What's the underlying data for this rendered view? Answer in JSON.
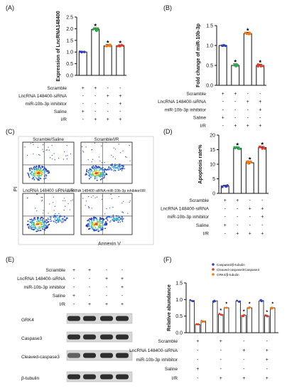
{
  "figure": {
    "panels": [
      {
        "letter": "(A)",
        "chart_data": {
          "type": "bar",
          "ylabel": "Expression of LncRNA148400",
          "ylim": [
            0,
            2.5
          ],
          "yticks": [
            "0.0",
            "0.5",
            "1.0",
            "1.5",
            "2.0",
            "2.5"
          ],
          "values": [
            1.0,
            1.97,
            1.27,
            1.27
          ],
          "errors": [
            0.02,
            0.07,
            0.05,
            0.04
          ],
          "bar_colors": [
            "#2f3fbf",
            "#2aa84a",
            "#f07a1a",
            "#e03a2a"
          ],
          "stars": [
            false,
            true,
            true,
            true
          ],
          "condition_labels": [
            "Scramble",
            "LncRNA 148400-siRNA",
            "miR-10b-3p inhibitor",
            "Saline",
            "I/R"
          ],
          "condition_signs": [
            [
              "+",
              "+",
              "-",
              "-"
            ],
            [
              "-",
              "-",
              "+",
              "+"
            ],
            [
              "-",
              "-",
              "-",
              "+"
            ],
            [
              "+",
              "-",
              "-",
              "-"
            ],
            [
              "-",
              "+",
              "+",
              "+"
            ]
          ]
        }
      },
      {
        "letter": "(B)",
        "chart_data": {
          "type": "bar",
          "ylabel": "Fold change of miR-10b-3p",
          "ylim": [
            0,
            1.5
          ],
          "yticks": [
            "0.0",
            "0.5",
            "1.0",
            "1.5"
          ],
          "values": [
            1.0,
            0.5,
            1.3,
            0.5
          ],
          "errors": [
            0.01,
            0.04,
            0.03,
            0.03
          ],
          "bar_colors": [
            "#2f3fbf",
            "#2aa84a",
            "#f07a1a",
            "#e03a2a"
          ],
          "stars": [
            false,
            true,
            true,
            true
          ],
          "condition_labels": [
            "Scramble",
            "LncRNA 148400-siRNA",
            "miR-10b-3p inhibitor",
            "Saline",
            "I/R"
          ],
          "condition_signs": [
            [
              "+",
              "+",
              "-",
              "-"
            ],
            [
              "-",
              "-",
              "+",
              "+"
            ],
            [
              "-",
              "-",
              "-",
              "+"
            ],
            [
              "+",
              "-",
              "-",
              "-"
            ],
            [
              "-",
              "+",
              "+",
              "+"
            ]
          ]
        }
      },
      {
        "letter": "(C)",
        "flow": {
          "titles": [
            "Scramble/Saline",
            "Scramble/I/R",
            "LncRNA 148400 siRNA/I/R",
            "LncRNA 148400 siRNA miR-10b-3p inhibitor/I/R"
          ],
          "xlabel": "Annexin V",
          "ylabel": "PI"
        }
      },
      {
        "letter": "(D)",
        "chart_data": {
          "type": "bar",
          "ylabel": "Apoptosis rate%",
          "ylim": [
            0,
            20
          ],
          "yticks": [
            "0",
            "5",
            "10",
            "15",
            "20"
          ],
          "values": [
            2.5,
            15.5,
            10.5,
            15.7
          ],
          "errors": [
            0.3,
            0.4,
            0.5,
            0.4
          ],
          "bar_colors": [
            "#2f3fbf",
            "#2aa84a",
            "#f07a1a",
            "#e03a2a"
          ],
          "stars": [
            false,
            true,
            true,
            true
          ],
          "condition_labels": [
            "Scramble",
            "LncRNA 148400-siRNA",
            "miR-10b-3p inhibitor",
            "Saline",
            "I/R"
          ],
          "condition_signs": [
            [
              "+",
              "+",
              "-",
              "-"
            ],
            [
              "-",
              "-",
              "+",
              "+"
            ],
            [
              "-",
              "-",
              "-",
              "+"
            ],
            [
              "+",
              "-",
              "-",
              "-"
            ],
            [
              "-",
              "+",
              "+",
              "+"
            ]
          ]
        }
      },
      {
        "letter": "(E)",
        "blot": {
          "condition_labels": [
            "Scramble",
            "LncRNA 148400-siRNA",
            "miR-10b-3p inhibitor",
            "Saline",
            "I/R"
          ],
          "condition_signs": [
            [
              "+",
              "+",
              "-",
              "-"
            ],
            [
              "-",
              "-",
              "+",
              "+"
            ],
            [
              "-",
              "-",
              "-",
              "+"
            ],
            [
              "+",
              "-",
              "-",
              "-"
            ],
            [
              "-",
              "+",
              "+",
              "+"
            ]
          ],
          "bands": [
            "GRK4",
            "Caspase3",
            "Cleaved-caspase3",
            "β-tubulin"
          ]
        }
      },
      {
        "letter": "(F)",
        "chart_data": {
          "type": "bar",
          "ylabel": "Relative abundance",
          "ylim": [
            0,
            1.5
          ],
          "yticks": [
            "0.0",
            "0.5",
            "1.0",
            "1.5"
          ],
          "series": [
            {
              "name": "Caspase3/β-tubulin",
              "color": "#2f3fbf",
              "values": [
                0.97,
                0.96,
                0.95,
                0.96
              ]
            },
            {
              "name": "Cleaved-caspase3/Caspase3",
              "color": "#e03a2a",
              "values": [
                0.25,
                0.55,
                0.52,
                0.5
              ]
            },
            {
              "name": "GRK4/β-tubulin",
              "color": "#f07a1a",
              "values": [
                0.35,
                0.75,
                0.75,
                0.75
              ]
            }
          ],
          "condition_labels": [
            "Scramble",
            "LncRNA 148400-siRNA",
            "miR-10b-3p inhibitor",
            "Saline",
            "I/R"
          ],
          "condition_signs": [
            [
              "+",
              "+",
              "-",
              "-"
            ],
            [
              "-",
              "-",
              "+",
              "+"
            ],
            [
              "-",
              "-",
              "-",
              "+"
            ],
            [
              "+",
              "-",
              "-",
              "-"
            ],
            [
              "-",
              "+",
              "+",
              "+"
            ]
          ],
          "legend_position": "top-right"
        }
      }
    ]
  }
}
